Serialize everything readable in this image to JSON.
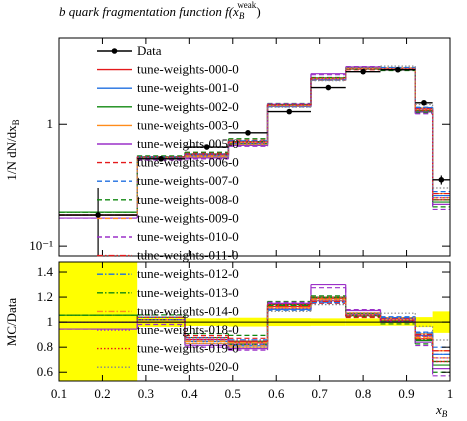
{
  "chart_data": {
    "type": "histogram",
    "title": {
      "text": "b quark fragmentation function f(x",
      "sub": "B",
      "sup": "weak",
      "close": ")"
    },
    "ylabel": {
      "text": "1/N dN/dx",
      "sub": "B"
    },
    "ratio_ylabel": "MC/Data",
    "xlabel": {
      "text": "x",
      "sub": "B"
    },
    "bins": [
      0.1,
      0.28,
      0.39,
      0.49,
      0.58,
      0.68,
      0.76,
      0.84,
      0.92,
      0.96,
      1.0
    ],
    "xlim": [
      0.1,
      1.0
    ],
    "xticks": [
      0.1,
      0.2,
      0.3,
      0.4,
      0.5,
      0.6,
      0.7,
      0.8,
      0.9,
      1.0
    ],
    "ylog": true,
    "ylim": [
      0.083,
      5.1
    ],
    "yticks": [
      {
        "value": 0.1,
        "label": "10⁻¹"
      },
      1
    ],
    "ratio_ylim": [
      0.53,
      1.48
    ],
    "ratio_yticks": [
      0.6,
      0.8,
      1,
      1.2,
      1.4
    ],
    "band_color": "#ffff00",
    "data": {
      "name": "Data",
      "color": "#000000",
      "values": [
        0.18,
        0.52,
        0.65,
        0.85,
        1.27,
        2.0,
        2.7,
        2.8,
        1.5,
        0.35
      ],
      "errors": [
        0.12,
        0.02,
        0.02,
        0.03,
        0.04,
        0.06,
        0.08,
        0.08,
        0.06,
        0.03
      ]
    },
    "series": [
      {
        "name": "tune-weights-000-0",
        "color": "#e41a1c",
        "dash": "solid",
        "values": [
          0.18,
          0.53,
          0.56,
          0.71,
          1.43,
          2.38,
          2.88,
          2.84,
          1.3,
          0.24
        ]
      },
      {
        "name": "tune-weights-001-0",
        "color": "#1f6fe0",
        "dash": "solid",
        "values": [
          0.18,
          0.52,
          0.55,
          0.69,
          1.4,
          2.34,
          2.86,
          2.88,
          1.34,
          0.26
        ]
      },
      {
        "name": "tune-weights-002-0",
        "color": "#118811",
        "dash": "solid",
        "values": [
          0.19,
          0.54,
          0.57,
          0.72,
          1.45,
          2.4,
          2.84,
          2.8,
          1.28,
          0.23
        ]
      },
      {
        "name": "tune-weights-003-0",
        "color": "#ff8c1a",
        "dash": "solid",
        "values": [
          0.18,
          0.53,
          0.54,
          0.68,
          1.41,
          2.35,
          2.9,
          2.9,
          1.36,
          0.27
        ]
      },
      {
        "name": "tune-weights-005-0",
        "color": "#9b30c8",
        "dash": "solid",
        "values": [
          0.17,
          0.52,
          0.53,
          0.67,
          1.46,
          2.6,
          2.95,
          2.82,
          1.26,
          0.22
        ]
      },
      {
        "name": "tune-weights-006-0",
        "color": "#e41a1c",
        "dash": "dashed",
        "values": [
          0.18,
          0.54,
          0.58,
          0.74,
          1.44,
          2.3,
          2.8,
          2.86,
          1.33,
          0.25
        ]
      },
      {
        "name": "tune-weights-007-0",
        "color": "#1f6fe0",
        "dash": "dashed",
        "values": [
          0.18,
          0.53,
          0.55,
          0.7,
          1.39,
          2.32,
          2.87,
          2.92,
          1.38,
          0.28
        ]
      },
      {
        "name": "tune-weights-008-0",
        "color": "#118811",
        "dash": "dashed",
        "values": [
          0.19,
          0.55,
          0.59,
          0.76,
          1.48,
          2.42,
          2.82,
          2.76,
          1.24,
          0.21
        ]
      },
      {
        "name": "tune-weights-009-0",
        "color": "#ff8c1a",
        "dash": "dashed",
        "values": [
          0.18,
          0.52,
          0.54,
          0.69,
          1.42,
          2.37,
          2.89,
          2.87,
          1.31,
          0.25
        ]
      },
      {
        "name": "tune-weights-010-0",
        "color": "#9b30c8",
        "dash": "dashed",
        "values": [
          0.17,
          0.51,
          0.52,
          0.66,
          1.47,
          2.55,
          2.97,
          2.8,
          1.22,
          0.2
        ]
      },
      {
        "name": "tune-weights-011-0",
        "color": "#e41a1c",
        "dash": "dashdot",
        "values": [
          0.18,
          0.53,
          0.56,
          0.72,
          1.43,
          2.33,
          2.83,
          2.88,
          1.35,
          0.27
        ]
      },
      {
        "name": "tune-weights-012-0",
        "color": "#1f6fe0",
        "dash": "dashdot",
        "values": [
          0.18,
          0.54,
          0.57,
          0.73,
          1.4,
          2.31,
          2.85,
          2.9,
          1.37,
          0.26
        ]
      },
      {
        "name": "tune-weights-013-0",
        "color": "#118811",
        "dash": "dashdot",
        "values": [
          0.19,
          0.53,
          0.55,
          0.7,
          1.44,
          2.39,
          2.88,
          2.83,
          1.29,
          0.24
        ]
      },
      {
        "name": "tune-weights-014-0",
        "color": "#ff8c1a",
        "dash": "dashdot",
        "values": [
          0.18,
          0.52,
          0.55,
          0.71,
          1.42,
          2.36,
          2.86,
          2.85,
          1.32,
          0.25
        ]
      },
      {
        "name": "tune-weights-018-0",
        "color": "#9b30c8",
        "dash": "dotted",
        "values": [
          0.18,
          0.53,
          0.56,
          0.7,
          1.41,
          2.35,
          2.87,
          2.86,
          1.33,
          0.25
        ]
      },
      {
        "name": "tune-weights-019-0",
        "color": "#e41a1c",
        "dash": "dotted",
        "values": [
          0.18,
          0.54,
          0.57,
          0.72,
          1.45,
          2.4,
          2.85,
          2.84,
          1.3,
          0.24
        ]
      },
      {
        "name": "tune-weights-020-0",
        "color": "#888888",
        "dash": "dotted",
        "values": [
          0.18,
          0.52,
          0.54,
          0.68,
          1.38,
          2.28,
          2.9,
          3.0,
          1.45,
          0.3
        ]
      }
    ]
  }
}
